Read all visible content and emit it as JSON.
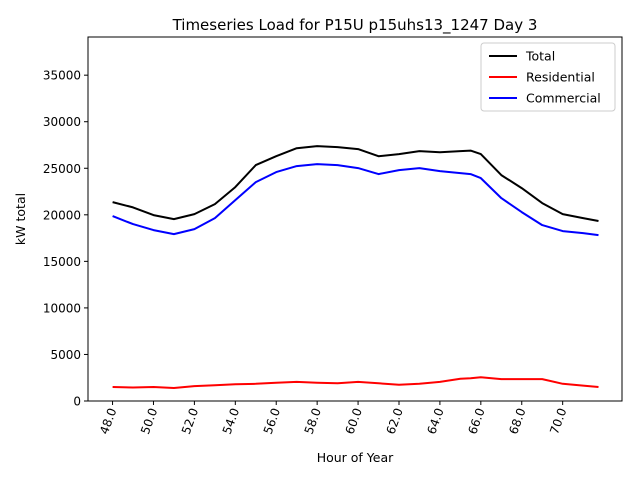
{
  "chart_data": {
    "type": "line",
    "title": "Timeseries Load for P15U p15uhs13_1247  Day 3",
    "xlabel": "Hour of Year",
    "ylabel": "kW total",
    "xlim": [
      46.8,
      72.9
    ],
    "ylim": [
      0,
      39100
    ],
    "xticks": [
      48,
      50,
      52,
      54,
      56,
      58,
      60,
      62,
      64,
      66,
      68,
      70
    ],
    "xtick_labels": [
      "48.0",
      "50.0",
      "52.0",
      "54.0",
      "56.0",
      "58.0",
      "60.0",
      "62.0",
      "64.0",
      "66.0",
      "68.0",
      "70.0"
    ],
    "yticks": [
      0,
      5000,
      10000,
      15000,
      20000,
      25000,
      30000,
      35000
    ],
    "ytick_labels": [
      "0",
      "5000",
      "10000",
      "15000",
      "20000",
      "25000",
      "30000",
      "35000"
    ],
    "grid": false,
    "legend_position": "top-right",
    "x": [
      48,
      49,
      50,
      51,
      52,
      53,
      54,
      55,
      56,
      57,
      58,
      59,
      60,
      61,
      62,
      63,
      64,
      65,
      65.5,
      66,
      67,
      68,
      69,
      70,
      71,
      71.75
    ],
    "series": [
      {
        "name": "Total",
        "color": "#000000",
        "values": [
          21370,
          20800,
          19970,
          19540,
          20080,
          21150,
          22980,
          25340,
          26300,
          27160,
          27380,
          27270,
          27060,
          26300,
          26520,
          26840,
          26730,
          26840,
          26900,
          26520,
          24270,
          22870,
          21260,
          20080,
          19650,
          19330
        ]
      },
      {
        "name": "Residential",
        "color": "#ff0000",
        "values": [
          1500,
          1450,
          1500,
          1400,
          1600,
          1700,
          1800,
          1850,
          1950,
          2050,
          1950,
          1900,
          2050,
          1900,
          1750,
          1850,
          2050,
          2400,
          2450,
          2550,
          2350,
          2350,
          2350,
          1850,
          1650,
          1500
        ]
      },
      {
        "name": "Commercial",
        "color": "#0000ff",
        "values": [
          19860,
          19000,
          18360,
          17930,
          18470,
          19650,
          21580,
          23510,
          24590,
          25230,
          25450,
          25340,
          25020,
          24370,
          24800,
          25020,
          24700,
          24480,
          24370,
          23940,
          21800,
          20290,
          18900,
          18250,
          18040,
          17820
        ]
      }
    ]
  }
}
